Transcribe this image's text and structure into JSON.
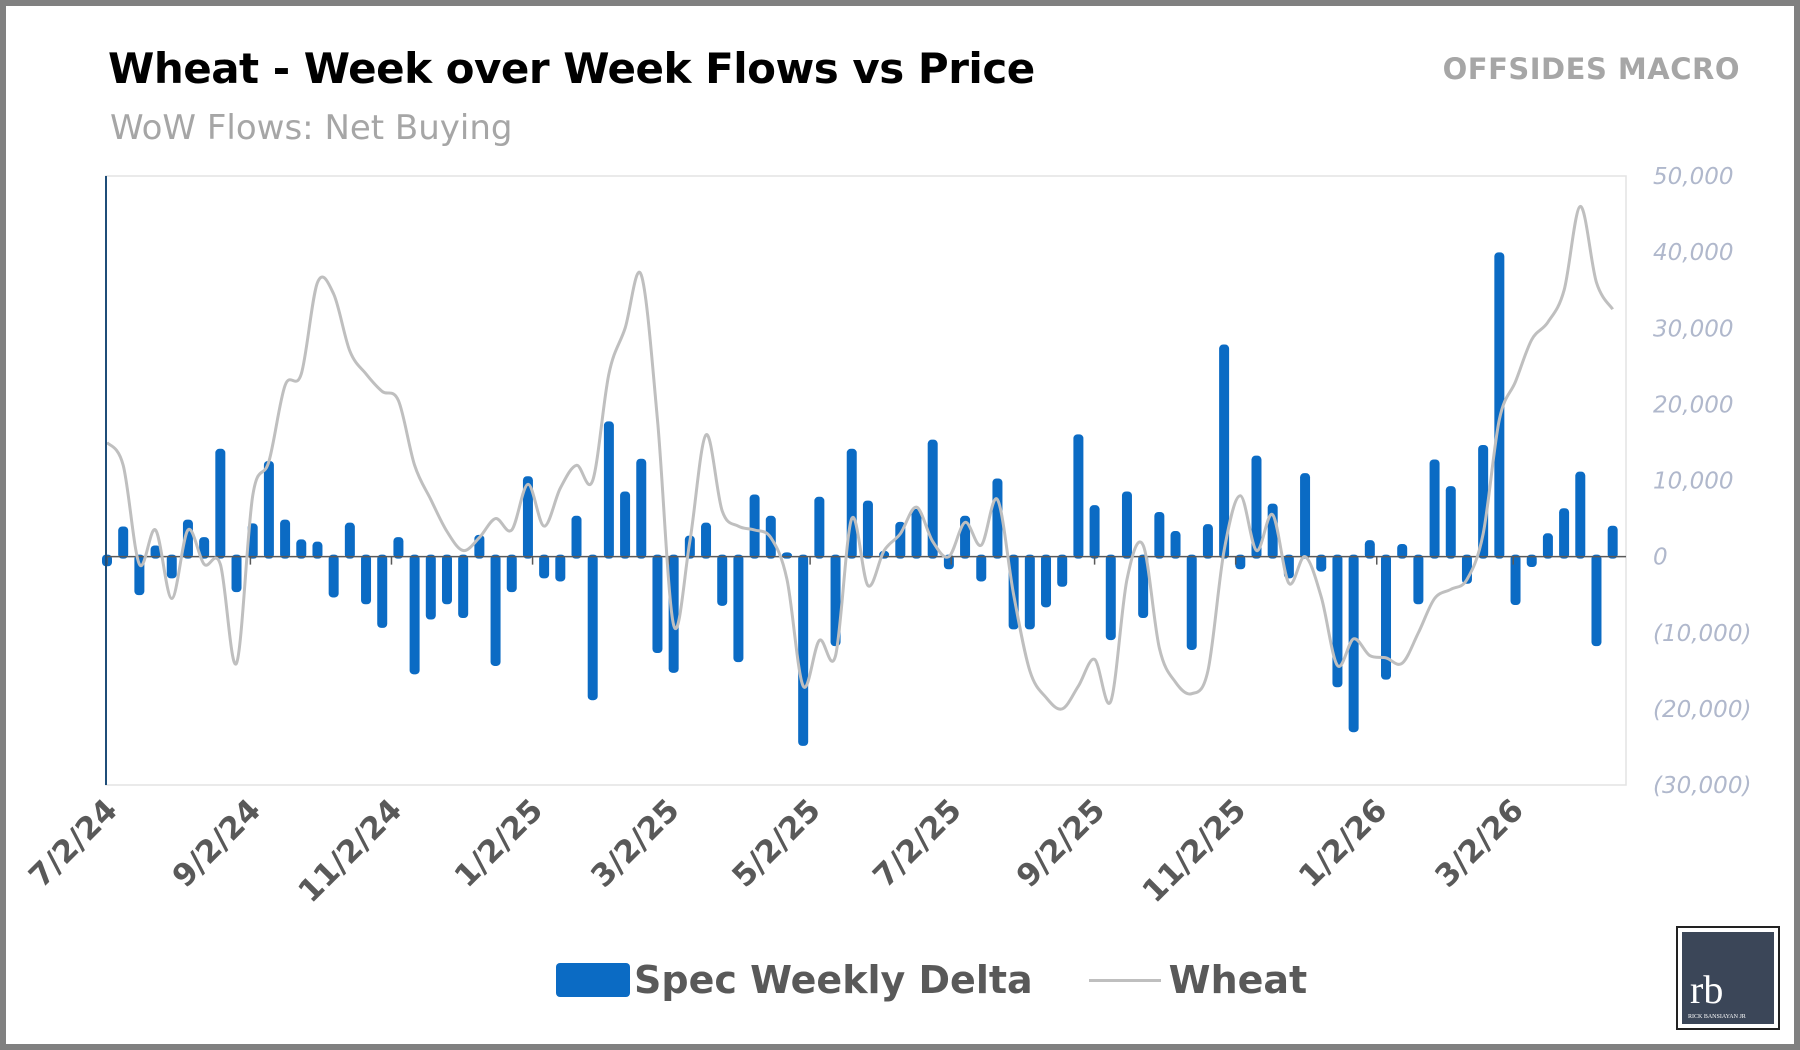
{
  "header": {
    "title": "Wheat - Week over Week Flows vs Price",
    "subtitle": "WoW Flows: Net Buying",
    "brand": "OFFSIDES MACRO"
  },
  "logo": {
    "monogram": "rb",
    "name": "RICK BANSIAYAN JR"
  },
  "colors": {
    "bars": "#0b6bc4",
    "line": "#bfbfbf",
    "axis_labels": "#b0b8cc",
    "date_labels": "#595959"
  },
  "chart_data": {
    "type": "bar+line",
    "title": "Wheat - Week over Week Flows vs Price",
    "subtitle": "WoW Flows: Net Buying",
    "y_axis_position": "right",
    "ylim": [
      -30000,
      50000
    ],
    "y_ticks": [
      "50,000",
      "40,000",
      "30,000",
      "20,000",
      "10,000",
      "0",
      "(10,000)",
      "(20,000)",
      "(30,000)"
    ],
    "y_tick_values": [
      50000,
      40000,
      30000,
      20000,
      10000,
      0,
      -10000,
      -20000,
      -30000
    ],
    "x_ticks": [
      "7/2/24",
      "9/2/24",
      "11/2/24",
      "1/2/25",
      "3/2/25",
      "5/2/25",
      "7/2/25",
      "9/2/25",
      "11/2/25",
      "1/2/26",
      "3/2/26"
    ],
    "grid": false,
    "legend_position": "bottom",
    "dates": [
      "7/2/24",
      "7/9/24",
      "7/16/24",
      "7/23/24",
      "7/30/24",
      "8/6/24",
      "8/13/24",
      "8/20/24",
      "8/27/24",
      "9/3/24",
      "9/10/24",
      "9/17/24",
      "9/24/24",
      "10/1/24",
      "10/8/24",
      "10/15/24",
      "10/22/24",
      "10/29/24",
      "11/5/24",
      "11/12/24",
      "11/19/24",
      "11/26/24",
      "12/3/24",
      "12/10/24",
      "12/17/24",
      "12/24/24",
      "12/31/24",
      "1/7/25",
      "1/14/25",
      "1/21/25",
      "1/28/25",
      "2/4/25",
      "2/11/25",
      "2/18/25",
      "2/25/25",
      "3/4/25",
      "3/11/25",
      "3/18/25",
      "3/25/25",
      "4/1/25",
      "4/8/25",
      "4/15/25",
      "4/22/25",
      "4/29/25",
      "5/6/25",
      "5/13/25",
      "5/20/25",
      "5/27/25",
      "6/3/25",
      "6/10/25",
      "6/17/25",
      "6/24/25",
      "7/1/25",
      "7/8/25",
      "7/15/25",
      "7/22/25",
      "7/29/25",
      "8/5/25",
      "8/12/25",
      "8/19/25",
      "8/26/25",
      "9/2/25",
      "9/9/25",
      "9/16/25",
      "9/23/25",
      "9/30/25",
      "10/7/25",
      "10/14/25",
      "10/21/25",
      "10/28/25",
      "11/4/25",
      "11/11/25",
      "11/18/25",
      "11/25/25",
      "12/2/25",
      "12/9/25",
      "12/16/25",
      "12/23/25",
      "12/30/25",
      "1/6/26",
      "1/13/26",
      "1/20/26",
      "1/27/26",
      "2/3/26",
      "2/10/26",
      "2/17/26",
      "2/24/26",
      "3/3/26",
      "3/10/26",
      "3/17/26",
      "3/24/26",
      "3/31/26",
      "4/7/26",
      "4/14/26"
    ],
    "series": [
      {
        "name": "Spec Weekly Delta",
        "type": "bar",
        "values": [
          -1000,
          3700,
          -4800,
          1200,
          -2600,
          4600,
          2300,
          13900,
          -4400,
          4100,
          12300,
          4600,
          2000,
          1700,
          -5100,
          4200,
          -6000,
          -9100,
          2300,
          -15200,
          -8000,
          -6000,
          -7800,
          2600,
          -14100,
          -4400,
          10300,
          -2600,
          -3000,
          5100,
          -18600,
          17500,
          8300,
          12600,
          -12400,
          -15000,
          2500,
          4200,
          -6200,
          -13600,
          7900,
          5100,
          300,
          -24600,
          7600,
          -11500,
          13900,
          7100,
          500,
          4300,
          6000,
          15100,
          -1400,
          5100,
          -3000,
          10000,
          -9300,
          -9300,
          -6400,
          -3700,
          15800,
          6500,
          -10700,
          8300,
          -7800,
          5600,
          3100,
          -12000,
          4000,
          27600,
          -1400,
          13000,
          6700,
          -2600,
          10700,
          -1700,
          -16900,
          -22800,
          1900,
          -15900,
          1400,
          -6000,
          12500,
          9000,
          -3300,
          14400,
          39700,
          -6100,
          -1100,
          2800,
          6100,
          10900,
          -11500,
          3800
        ]
      },
      {
        "name": "Wheat",
        "type": "line",
        "values": [
          15000,
          12000,
          -1000,
          3500,
          -5500,
          3500,
          -1000,
          -1000,
          -14000,
          8000,
          12500,
          22500,
          24000,
          36000,
          34500,
          27000,
          24000,
          21700,
          20500,
          12000,
          7500,
          3300,
          800,
          2500,
          5000,
          3500,
          9500,
          4000,
          9000,
          12000,
          10000,
          24000,
          30000,
          37000,
          18000,
          -9000,
          2000,
          16000,
          6000,
          4000,
          3500,
          2500,
          -3000,
          -17000,
          -11000,
          -13000,
          5000,
          -3800,
          800,
          3000,
          6500,
          2000,
          0,
          4500,
          1500,
          7500,
          -5000,
          -15000,
          -18500,
          -20000,
          -17000,
          -13500,
          -19000,
          -3000,
          1500,
          -12000,
          -16500,
          -18000,
          -15000,
          800,
          8000,
          800,
          5500,
          -3500,
          0,
          -5300,
          -14300,
          -10800,
          -13000,
          -13300,
          -14000,
          -10000,
          -5500,
          -4300,
          -3000,
          3000,
          18000,
          23000,
          28500,
          30800,
          35000,
          46000,
          36000,
          32500
        ]
      }
    ]
  }
}
